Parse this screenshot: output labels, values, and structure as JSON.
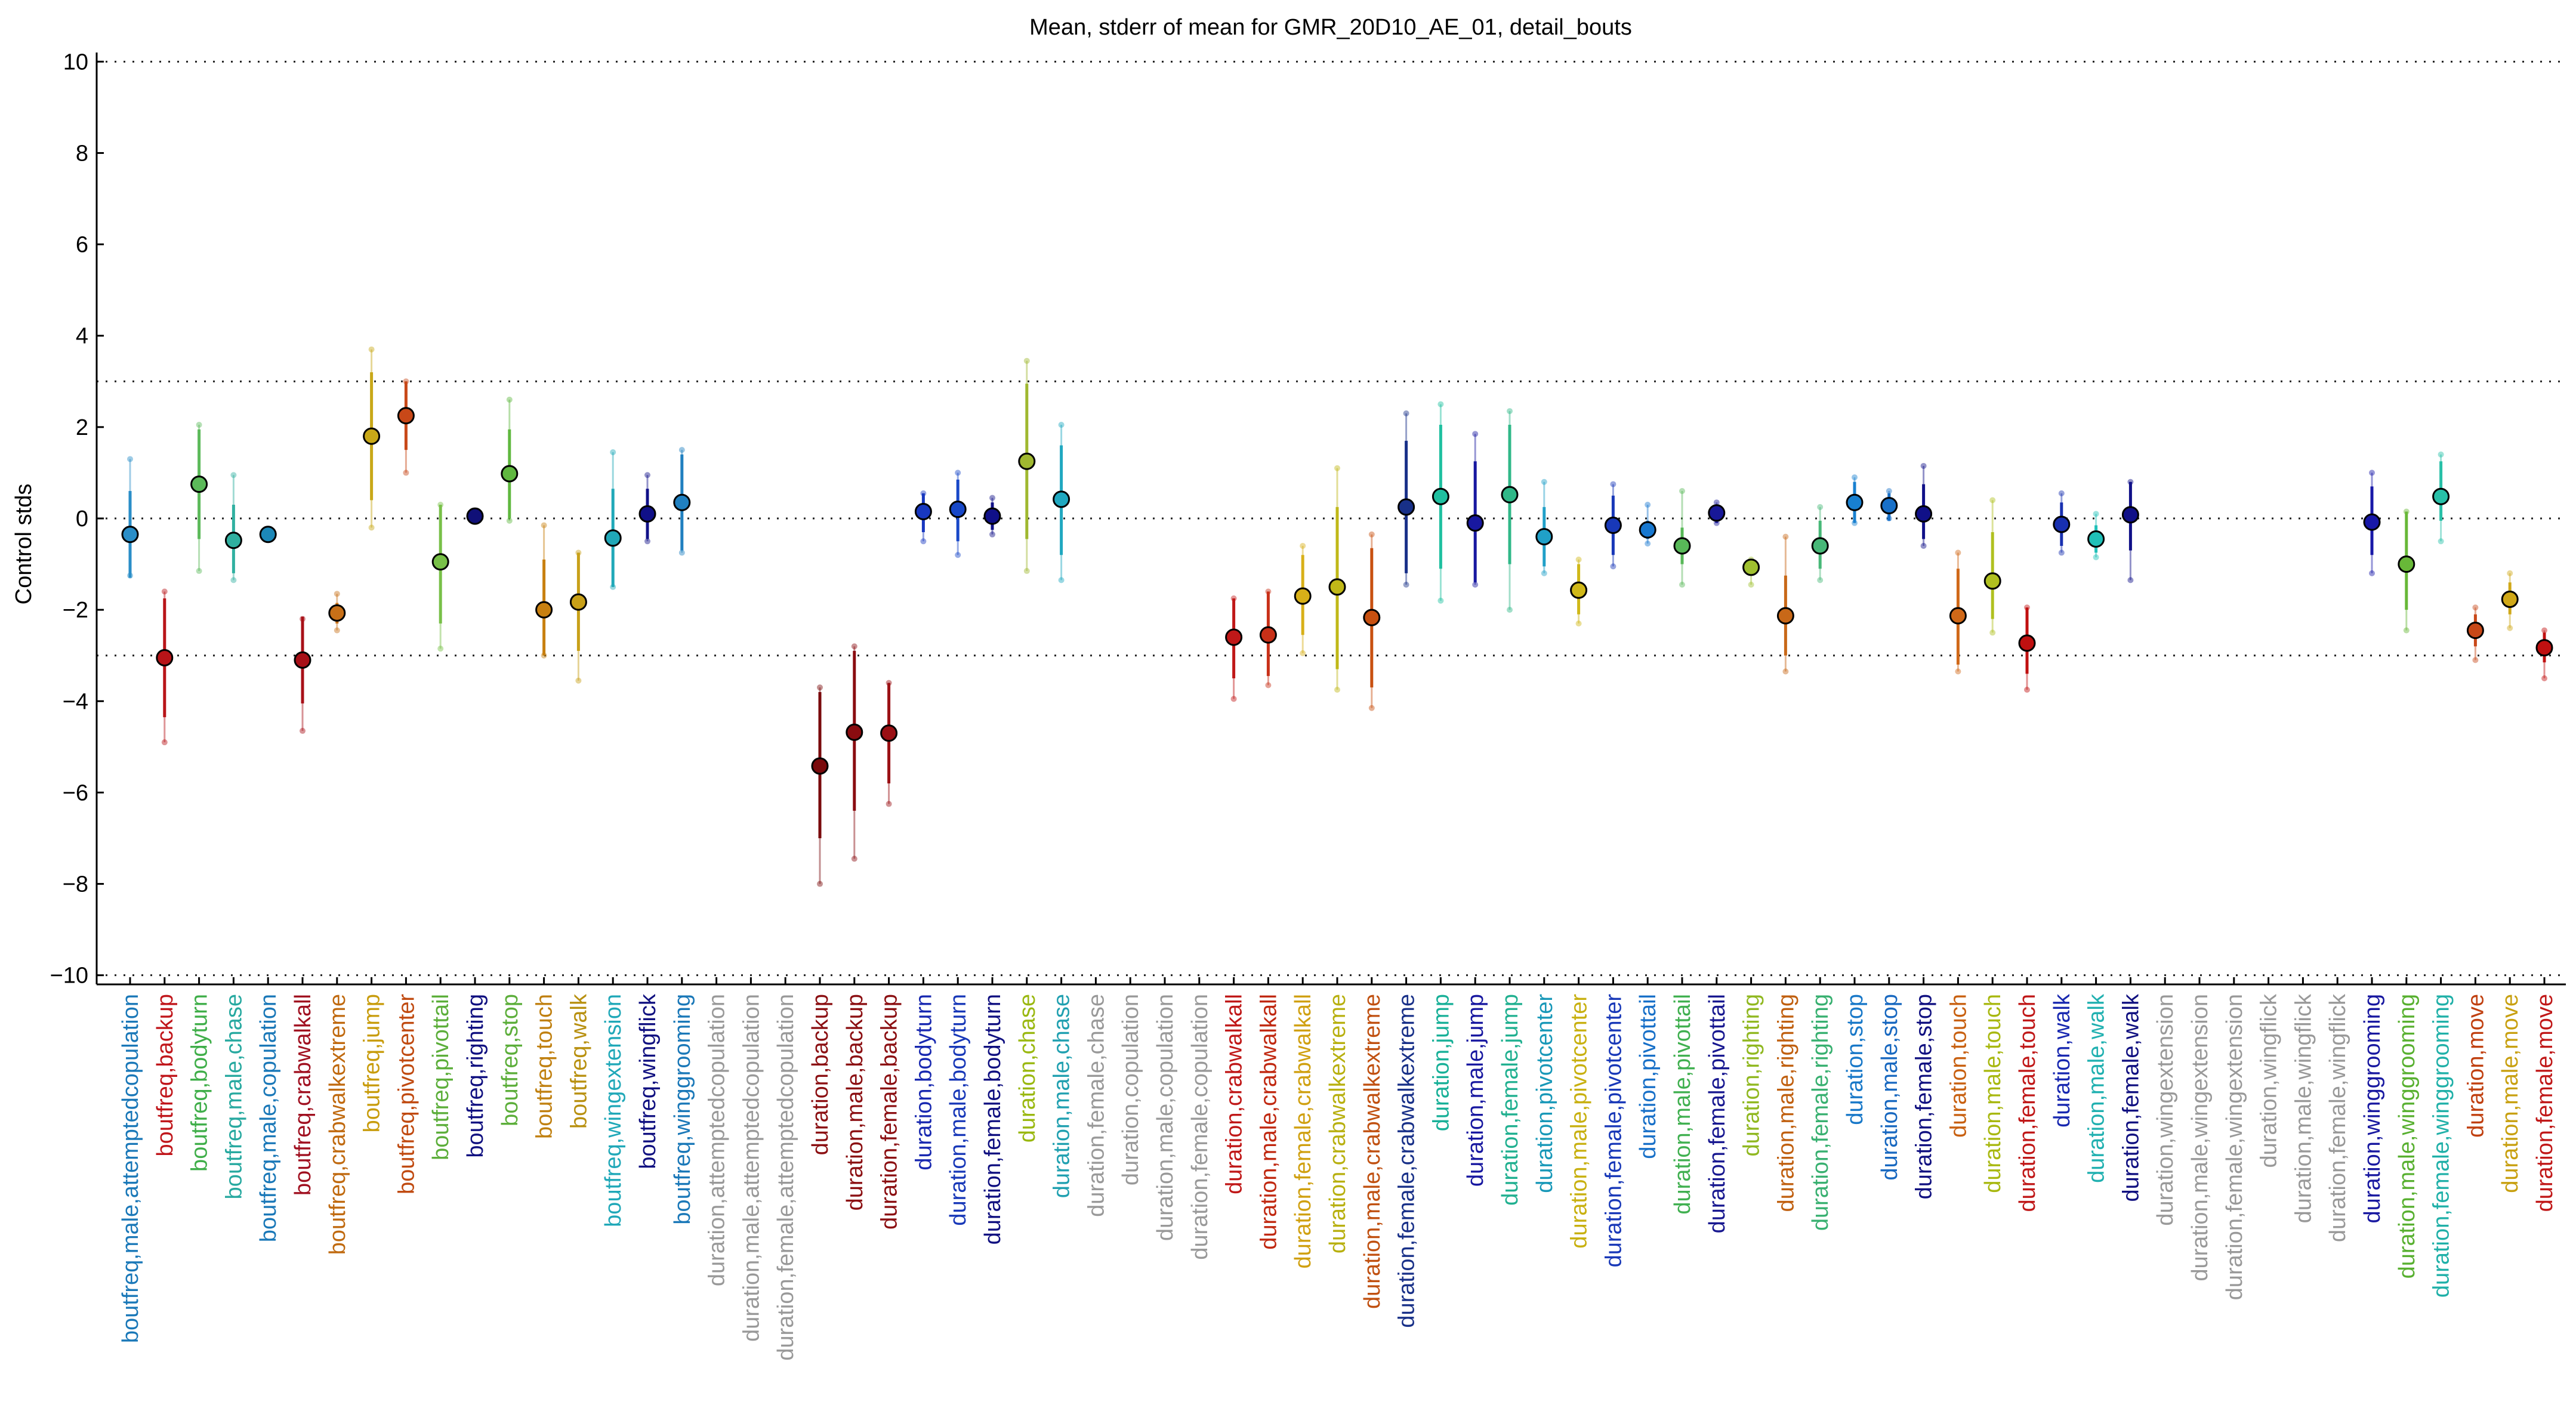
{
  "chart_data": {
    "type": "errorbar",
    "title": "Mean, stderr of mean for GMR_20D10_AE_01, detail_bouts",
    "ylabel": "Control stds",
    "ylim": [
      -10.2,
      10.2
    ],
    "yticks": [
      -10,
      -8,
      -6,
      -4,
      -2,
      0,
      2,
      4,
      6,
      8,
      10
    ],
    "ytick_labels": [
      "−10",
      "−8",
      "−6",
      "−4",
      "−2",
      "0",
      "2",
      "4",
      "6",
      "8",
      "10"
    ],
    "reference_lines": [
      -10,
      -3,
      0,
      3,
      10
    ],
    "categories": [
      "boutfreq,male,attemptedcopulation",
      "boutfreq,backup",
      "boutfreq,bodyturn",
      "boutfreq,male,chase",
      "boutfreq,male,copulation",
      "boutfreq,crabwalkall",
      "boutfreq,crabwalkextreme",
      "boutfreq,jump",
      "boutfreq,pivotcenter",
      "boutfreq,pivottail",
      "boutfreq,righting",
      "boutfreq,stop",
      "boutfreq,touch",
      "boutfreq,walk",
      "boutfreq,wingextension",
      "boutfreq,wingflick",
      "boutfreq,winggrooming",
      "duration,attemptedcopulation",
      "duration,male,attemptedcopulation",
      "duration,female,attemptedcopulation",
      "duration,backup",
      "duration,male,backup",
      "duration,female,backup",
      "duration,bodyturn",
      "duration,male,bodyturn",
      "duration,female,bodyturn",
      "duration,chase",
      "duration,male,chase",
      "duration,female,chase",
      "duration,copulation",
      "duration,male,copulation",
      "duration,female,copulation",
      "duration,crabwalkall",
      "duration,male,crabwalkall",
      "duration,female,crabwalkall",
      "duration,crabwalkextreme",
      "duration,male,crabwalkextreme",
      "duration,female,crabwalkextreme",
      "duration,jump",
      "duration,male,jump",
      "duration,female,jump",
      "duration,pivotcenter",
      "duration,male,pivotcenter",
      "duration,female,pivotcenter",
      "duration,pivottail",
      "duration,male,pivottail",
      "duration,female,pivottail",
      "duration,righting",
      "duration,male,righting",
      "duration,female,righting",
      "duration,stop",
      "duration,male,stop",
      "duration,female,stop",
      "duration,touch",
      "duration,male,touch",
      "duration,female,touch",
      "duration,walk",
      "duration,male,walk",
      "duration,female,walk",
      "duration,wingextension",
      "duration,male,wingextension",
      "duration,female,wingextension",
      "duration,wingflick",
      "duration,male,wingflick",
      "duration,female,wingflick",
      "duration,winggrooming",
      "duration,male,winggrooming",
      "duration,female,winggrooming",
      "duration,move",
      "duration,male,move",
      "duration,female,move"
    ],
    "label_colors": [
      "#1a78b8",
      "#c0161b",
      "#3fae49",
      "#27a9a0",
      "#1a78b8",
      "#a01020",
      "#c06a10",
      "#c89c0c",
      "#c04a10",
      "#5cae3a",
      "#101080",
      "#5cae3a",
      "#c08010",
      "#b89010",
      "#20a8b8",
      "#101080",
      "#1a78b8",
      "#999999",
      "#999999",
      "#999999",
      "#8b0f12",
      "#8b0f12",
      "#8b0f12",
      "#1828b0",
      "#1838b8",
      "#101080",
      "#9ab810",
      "#20a0b0",
      "#999999",
      "#999999",
      "#999999",
      "#999999",
      "#c01818",
      "#c02810",
      "#d0a010",
      "#b8b010",
      "#c05010",
      "#183088",
      "#18b098",
      "#1818a0",
      "#20b090",
      "#1898b8",
      "#c8b010",
      "#1838b8",
      "#1870c8",
      "#40b050",
      "#181890",
      "#90b820",
      "#c06010",
      "#38b070",
      "#1878c8",
      "#1868c0",
      "#101080",
      "#c86010",
      "#a8b810",
      "#c01818",
      "#1828b0",
      "#20b0b0",
      "#101080",
      "#999999",
      "#999999",
      "#999999",
      "#999999",
      "#999999",
      "#999999",
      "#1818a0",
      "#58b030",
      "#20b0a8",
      "#c04010",
      "#c8a010",
      "#c01818"
    ],
    "means": [
      -0.35,
      -3.05,
      0.75,
      -0.48,
      -0.35,
      -3.1,
      -2.07,
      1.8,
      2.25,
      -0.95,
      0.05,
      0.98,
      -2.0,
      -1.83,
      -0.43,
      0.1,
      0.35,
      null,
      null,
      null,
      -5.42,
      -4.68,
      -4.7,
      0.15,
      0.2,
      0.05,
      1.25,
      0.42,
      null,
      null,
      null,
      null,
      -2.6,
      -2.55,
      -1.7,
      -1.5,
      -2.17,
      0.25,
      0.48,
      -0.1,
      0.52,
      -0.4,
      -1.57,
      -0.15,
      -0.25,
      -0.6,
      0.12,
      -1.07,
      -2.13,
      -0.6,
      0.35,
      0.28,
      0.1,
      -2.13,
      -1.37,
      -2.73,
      -0.13,
      -0.45,
      0.08,
      null,
      null,
      null,
      null,
      null,
      null,
      -0.08,
      -1.0,
      0.48,
      -2.45,
      -1.77,
      -2.83
    ],
    "err_inner": [
      [
        -1.3,
        0.6
      ],
      [
        -4.35,
        -1.75
      ],
      [
        -0.45,
        1.95
      ],
      [
        -1.2,
        0.3
      ],
      [
        -0.35,
        -0.35
      ],
      [
        -4.05,
        -2.15
      ],
      [
        -2.3,
        -1.85
      ],
      [
        0.4,
        3.2
      ],
      [
        1.5,
        3.0
      ],
      [
        -2.3,
        0.3
      ],
      [
        0.05,
        0.05
      ],
      [
        0.0,
        1.95
      ],
      [
        -3.0,
        -0.9
      ],
      [
        -2.9,
        -0.75
      ],
      [
        -1.5,
        0.65
      ],
      [
        -0.45,
        0.65
      ],
      [
        -0.7,
        1.4
      ],
      null,
      null,
      null,
      [
        -7.0,
        -3.8
      ],
      [
        -6.4,
        -2.9
      ],
      [
        -5.8,
        -3.6
      ],
      [
        -0.3,
        0.55
      ],
      [
        -0.5,
        0.85
      ],
      [
        -0.25,
        0.35
      ],
      [
        -0.45,
        2.95
      ],
      [
        -0.8,
        1.6
      ],
      null,
      null,
      null,
      null,
      [
        -3.5,
        -1.75
      ],
      [
        -3.45,
        -1.6
      ],
      [
        -2.55,
        -0.8
      ],
      [
        -3.3,
        0.25
      ],
      [
        -3.7,
        -0.65
      ],
      [
        -1.2,
        1.7
      ],
      [
        -1.1,
        2.05
      ],
      [
        -1.4,
        1.25
      ],
      [
        -1.0,
        2.05
      ],
      [
        -1.05,
        0.25
      ],
      [
        -2.1,
        -1.0
      ],
      [
        -0.8,
        0.5
      ],
      [
        -0.45,
        -0.05
      ],
      [
        -1.0,
        -0.2
      ],
      [
        -0.1,
        0.3
      ],
      [
        -1.25,
        -0.9
      ],
      [
        -3.0,
        -1.25
      ],
      [
        -1.1,
        -0.05
      ],
      [
        -0.1,
        0.8
      ],
      [
        -0.05,
        0.55
      ],
      [
        -0.45,
        0.75
      ],
      [
        -3.2,
        -1.1
      ],
      [
        -2.2,
        -0.3
      ],
      [
        -3.4,
        -1.95
      ],
      [
        -0.6,
        0.35
      ],
      [
        -0.75,
        -0.15
      ],
      [
        -0.7,
        0.8
      ],
      null,
      null,
      null,
      null,
      null,
      null,
      [
        -0.8,
        0.7
      ],
      [
        -2.0,
        0.15
      ],
      [
        -0.05,
        1.25
      ],
      [
        -2.8,
        -2.1
      ],
      [
        -2.1,
        -1.4
      ],
      [
        -3.15,
        -2.5
      ]
    ],
    "err_outer": [
      [
        -1.25,
        1.3
      ],
      [
        -4.9,
        -1.6
      ],
      [
        -1.15,
        2.05
      ],
      [
        -1.35,
        0.95
      ],
      [
        -0.35,
        -0.35
      ],
      [
        -4.65,
        -2.2
      ],
      [
        -2.45,
        -1.65
      ],
      [
        -0.2,
        3.7
      ],
      [
        1.0,
        3.0
      ],
      [
        -2.85,
        0.3
      ],
      [
        0.05,
        0.05
      ],
      [
        -0.05,
        2.6
      ],
      [
        -3.0,
        -0.15
      ],
      [
        -3.55,
        -0.75
      ],
      [
        -1.5,
        1.45
      ],
      [
        -0.5,
        0.95
      ],
      [
        -0.75,
        1.5
      ],
      null,
      null,
      null,
      [
        -8.0,
        -3.7
      ],
      [
        -7.45,
        -2.8
      ],
      [
        -6.25,
        -3.6
      ],
      [
        -0.5,
        0.55
      ],
      [
        -0.8,
        1.0
      ],
      [
        -0.35,
        0.45
      ],
      [
        -1.15,
        3.45
      ],
      [
        -1.35,
        2.05
      ],
      null,
      null,
      null,
      null,
      [
        -3.95,
        -1.75
      ],
      [
        -3.65,
        -1.6
      ],
      [
        -2.95,
        -0.6
      ],
      [
        -3.75,
        1.1
      ],
      [
        -4.15,
        -0.35
      ],
      [
        -1.45,
        2.3
      ],
      [
        -1.8,
        2.5
      ],
      [
        -1.45,
        1.85
      ],
      [
        -2.0,
        2.35
      ],
      [
        -1.2,
        0.8
      ],
      [
        -2.3,
        -0.9
      ],
      [
        -1.05,
        0.75
      ],
      [
        -0.55,
        0.3
      ],
      [
        -1.45,
        0.6
      ],
      [
        -0.1,
        0.35
      ],
      [
        -1.45,
        -0.9
      ],
      [
        -3.35,
        -0.4
      ],
      [
        -1.35,
        0.25
      ],
      [
        -0.1,
        0.9
      ],
      [
        0.0,
        0.6
      ],
      [
        -0.6,
        1.15
      ],
      [
        -3.35,
        -0.75
      ],
      [
        -2.5,
        0.4
      ],
      [
        -3.75,
        -1.95
      ],
      [
        -0.75,
        0.55
      ],
      [
        -0.85,
        0.1
      ],
      [
        -1.35,
        0.8
      ],
      null,
      null,
      null,
      null,
      null,
      null,
      [
        -1.2,
        1.0
      ],
      [
        -2.45,
        0.15
      ],
      [
        -0.5,
        1.4
      ],
      [
        -3.1,
        -1.95
      ],
      [
        -2.4,
        -1.2
      ],
      [
        -3.5,
        -2.45
      ]
    ],
    "marker_colors": [
      "#2a8ec8",
      "#b81418",
      "#5cba5a",
      "#30b0a0",
      "#1c88b8",
      "#a81018",
      "#c87018",
      "#c8a818",
      "#c84818",
      "#78c048",
      "#101078",
      "#60b840",
      "#c88010",
      "#c8a018",
      "#20a8b8",
      "#101088",
      "#2080c0",
      null,
      null,
      null,
      "#7a0a0c",
      "#8a0c10",
      "#9a1014",
      "#1838c0",
      "#1848c8",
      "#101088",
      "#a0b830",
      "#20a8c0",
      null,
      null,
      null,
      null,
      "#c01818",
      "#c83018",
      "#d8b018",
      "#c0b818",
      "#c85010",
      "#183088",
      "#20c0a0",
      "#1818a0",
      "#30b888",
      "#20a0c8",
      "#d0b818",
      "#1838b8",
      "#1878d0",
      "#58b858",
      "#181898",
      "#a0c030",
      "#c86818",
      "#48b878",
      "#1880d0",
      "#1870c8",
      "#101088",
      "#d06818",
      "#b0c020",
      "#c01010",
      "#1830b0",
      "#20c0b8",
      "#101088",
      null,
      null,
      null,
      null,
      null,
      null,
      "#1818a8",
      "#68b838",
      "#28c0a8",
      "#c84818",
      "#d0a818",
      "#c01010"
    ]
  }
}
